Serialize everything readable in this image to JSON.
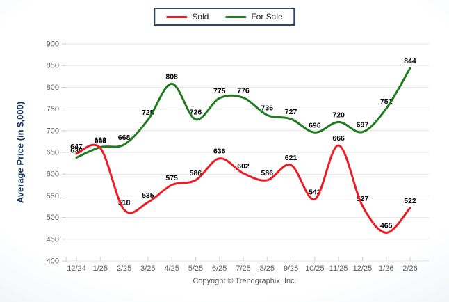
{
  "page": {
    "background_edge_color": "#d9e2ea",
    "background_center_color": "#ffffff"
  },
  "legend": {
    "border_color": "#2b4a6b",
    "items": [
      {
        "label": "Sold",
        "color": "#ed1c24"
      },
      {
        "label": "For Sale",
        "color": "#1e7b1e"
      }
    ]
  },
  "chart_data": {
    "type": "line",
    "title": "",
    "xlabel": "",
    "ylabel": "Average Price (in $,000)",
    "ylim": [
      400,
      900
    ],
    "ytick_step": 50,
    "grid": "horizontal-only",
    "legend_position": "top-center",
    "line_style": "smooth",
    "categories": [
      "12/24",
      "1/25",
      "2/25",
      "3/25",
      "4/25",
      "5/25",
      "6/25",
      "7/25",
      "8/25",
      "9/25",
      "10/25",
      "11/25",
      "12/25",
      "1/26",
      "2/26"
    ],
    "series": [
      {
        "name": "Sold",
        "color": "#ed1c24",
        "values": [
          647,
          660,
          518,
          535,
          575,
          586,
          636,
          602,
          586,
          621,
          542,
          666,
          527,
          465,
          522
        ]
      },
      {
        "name": "For Sale",
        "color": "#1e7b1e",
        "values": [
          638,
          662,
          668,
          725,
          808,
          726,
          775,
          776,
          736,
          727,
          696,
          720,
          697,
          751,
          844
        ]
      }
    ]
  },
  "footer": {
    "copyright_text": "Copyright © Trendgraphix, Inc."
  }
}
